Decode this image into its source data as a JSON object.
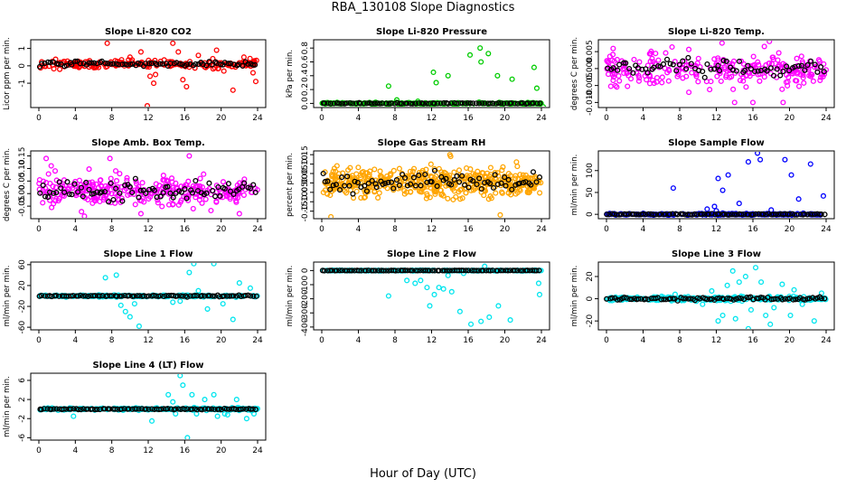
{
  "suptitle": "RBA_130108  Slope Diagnostics",
  "xlabel": "Hour of Day (UTC)",
  "colors": {
    "red": "#ff0000",
    "green": "#00cc00",
    "magenta": "#ff00ff",
    "orange": "#ffa500",
    "blue": "#0000ff",
    "cyan": "#00e5ee",
    "black": "#000000"
  },
  "chart_data": [
    {
      "type": "scatter",
      "title": "Slope Li-820 CO2",
      "ylabel": "Licor ppm per min.",
      "xticks": [
        0,
        4,
        8,
        12,
        16,
        20,
        24
      ],
      "yticks": [
        -1,
        0,
        1
      ],
      "ytick_labels": [
        "-1",
        "0",
        "1"
      ],
      "ylim": [
        -2.4,
        1.5
      ],
      "color": "red",
      "base": {
        "center": 0.1,
        "spread": 0.2,
        "count": 200
      },
      "black": {
        "spread": 0.1,
        "count": 80
      },
      "outliers": [
        [
          7.5,
          1.3
        ],
        [
          10,
          0.5
        ],
        [
          11.2,
          0.8
        ],
        [
          12.2,
          -0.6
        ],
        [
          12.6,
          -1.0
        ],
        [
          12.8,
          -0.5
        ],
        [
          14.7,
          1.3
        ],
        [
          15.3,
          0.8
        ],
        [
          15.8,
          -0.8
        ],
        [
          16.2,
          -1.2
        ],
        [
          17.5,
          0.6
        ],
        [
          19.5,
          0.9
        ],
        [
          20.3,
          -0.3
        ],
        [
          21.3,
          -1.4
        ],
        [
          22.5,
          0.5
        ],
        [
          23.5,
          -0.4
        ],
        [
          11.9,
          -2.3
        ],
        [
          23.8,
          -0.9
        ]
      ]
    },
    {
      "type": "scatter",
      "title": "Slope Li-820 Pressure",
      "ylabel": "kPa per min.",
      "xticks": [
        0,
        4,
        8,
        12,
        16,
        20,
        24
      ],
      "yticks": [
        0,
        0.2,
        0.4,
        0.6,
        0.8
      ],
      "ytick_labels": [
        "0.0",
        "0.2",
        "0.4",
        "0.6",
        "0.8"
      ],
      "ylim": [
        -0.06,
        0.92
      ],
      "color": "green",
      "base": {
        "center": 0.0,
        "spread": 0.01,
        "count": 200
      },
      "black": {
        "spread": 0.005,
        "count": 80
      },
      "outliers": [
        [
          7.3,
          0.25
        ],
        [
          8.2,
          0.05
        ],
        [
          10.5,
          0.03
        ],
        [
          12.2,
          0.45
        ],
        [
          12.5,
          0.3
        ],
        [
          13.8,
          0.4
        ],
        [
          16.2,
          0.7
        ],
        [
          16.4,
          -0.05
        ],
        [
          17.3,
          0.8
        ],
        [
          17.4,
          0.6
        ],
        [
          18.2,
          0.72
        ],
        [
          19.2,
          0.4
        ],
        [
          20.8,
          0.35
        ],
        [
          23.2,
          0.52
        ],
        [
          23.5,
          0.22
        ],
        [
          24.2,
          -0.05
        ]
      ]
    },
    {
      "type": "scatter",
      "title": "Slope Li-820 Temp.",
      "ylabel": "degrees C per min.",
      "xticks": [
        0,
        4,
        8,
        12,
        16,
        20,
        24
      ],
      "yticks": [
        -0.01,
        -0.005,
        0,
        0.005
      ],
      "ytick_labels": [
        "-0.010",
        "-0.005",
        "0.000",
        "0.005"
      ],
      "ylim": [
        -0.0115,
        0.0085
      ],
      "color": "magenta",
      "base": {
        "center": 0.0,
        "spread": 0.004,
        "count": 260
      },
      "black": {
        "spread": 0.002,
        "count": 70
      },
      "outliers": [
        [
          17.8,
          0.008
        ],
        [
          14,
          -0.01
        ],
        [
          16,
          -0.01
        ],
        [
          19.3,
          -0.01
        ],
        [
          9,
          -0.007
        ]
      ]
    },
    {
      "type": "scatter",
      "title": "Slope Amb. Box Temp.",
      "ylabel": "degrees C per min.",
      "xticks": [
        0,
        4,
        8,
        12,
        16,
        20,
        24
      ],
      "yticks": [
        -0.05,
        0,
        0.05,
        0.1,
        0.15
      ],
      "ytick_labels": [
        "-0.05",
        "0.00",
        "0.05",
        "0.10",
        "0.15"
      ],
      "ylim": [
        -0.1,
        0.17
      ],
      "color": "magenta",
      "base": {
        "center": 0.01,
        "spread": 0.05,
        "count": 300
      },
      "black": {
        "spread": 0.04,
        "count": 80
      },
      "outliers": [
        [
          0.8,
          0.14
        ],
        [
          7.8,
          0.14
        ],
        [
          5,
          -0.09
        ],
        [
          11.2,
          -0.08
        ],
        [
          16.5,
          0.15
        ],
        [
          22,
          -0.08
        ]
      ]
    },
    {
      "type": "scatter",
      "title": "Slope Gas Stream RH",
      "ylabel": "percent per min.",
      "xticks": [
        0,
        4,
        8,
        12,
        16,
        20,
        24
      ],
      "yticks": [
        -0.15,
        -0.1,
        -0.05,
        0,
        0.05,
        0.1,
        0.15
      ],
      "ytick_labels": [
        "-0.15",
        "-0.10",
        "-0.05",
        "0.00",
        "0.05",
        "0.10",
        "0.15"
      ],
      "ylim": [
        -0.19,
        0.17
      ],
      "color": "orange",
      "base": {
        "center": 0.0,
        "spread": 0.06,
        "count": 480
      },
      "black": {
        "spread": 0.04,
        "count": 80
      },
      "outliers": [
        [
          1,
          -0.18
        ],
        [
          14,
          0.15
        ],
        [
          19.5,
          -0.17
        ]
      ]
    },
    {
      "type": "scatter",
      "title": "Slope Sample Flow",
      "ylabel": "ml/min per min.",
      "xticks": [
        0,
        4,
        8,
        12,
        16,
        20,
        24
      ],
      "yticks": [
        0,
        50,
        100
      ],
      "ytick_labels": [
        "0",
        "50",
        "100"
      ],
      "ylim": [
        -10,
        145
      ],
      "color": "blue",
      "base": {
        "center": 0,
        "spread": 1.5,
        "count": 220
      },
      "black": {
        "spread": 1,
        "count": 90
      },
      "outliers": [
        [
          7.3,
          60
        ],
        [
          11,
          12
        ],
        [
          11.8,
          18
        ],
        [
          12.2,
          82
        ],
        [
          12.7,
          55
        ],
        [
          13.3,
          90
        ],
        [
          14.5,
          25
        ],
        [
          15.5,
          120
        ],
        [
          16.5,
          140
        ],
        [
          16.8,
          125
        ],
        [
          18,
          10
        ],
        [
          19.5,
          125
        ],
        [
          20.2,
          90
        ],
        [
          21,
          35
        ],
        [
          22.3,
          115
        ],
        [
          23.7,
          42
        ],
        [
          10.7,
          -5
        ],
        [
          12,
          8
        ]
      ]
    },
    {
      "type": "scatter",
      "title": "Slope Line 1 Flow",
      "ylabel": "ml/min per min.",
      "xticks": [
        0,
        4,
        8,
        12,
        16,
        20,
        24
      ],
      "yticks": [
        -60,
        -20,
        20,
        60
      ],
      "ytick_labels": [
        "-60",
        "-20",
        "20",
        "60"
      ],
      "ylim": [
        -65,
        65
      ],
      "color": "cyan",
      "base": {
        "center": 0,
        "spread": 1.5,
        "count": 220
      },
      "black": {
        "spread": 1,
        "count": 90
      },
      "outliers": [
        [
          7.3,
          35
        ],
        [
          9,
          -18
        ],
        [
          9.5,
          -30
        ],
        [
          10,
          -40
        ],
        [
          10.5,
          -15
        ],
        [
          11,
          -58
        ],
        [
          16.5,
          45
        ],
        [
          17,
          62
        ],
        [
          17.5,
          10
        ],
        [
          18.5,
          -25
        ],
        [
          19.2,
          62
        ],
        [
          20.2,
          -15
        ],
        [
          21.3,
          -45
        ],
        [
          22,
          25
        ],
        [
          23.2,
          15
        ],
        [
          14.7,
          -12
        ],
        [
          15.5,
          -10
        ],
        [
          8.5,
          40
        ]
      ]
    },
    {
      "type": "scatter",
      "title": "Slope Line 2 Flow",
      "ylabel": "ml/min per min.",
      "xticks": [
        0,
        4,
        8,
        12,
        16,
        20,
        24
      ],
      "yticks": [
        -400,
        -300,
        -200,
        -100,
        0
      ],
      "ytick_labels": [
        "-400",
        "-300",
        "-200",
        "-100",
        "0"
      ],
      "ylim": [
        -420,
        60
      ],
      "color": "cyan",
      "base": {
        "center": 0,
        "spread": 2,
        "count": 220
      },
      "black": {
        "spread": 1,
        "count": 90
      },
      "outliers": [
        [
          7.3,
          -180
        ],
        [
          9.3,
          -70
        ],
        [
          10.2,
          -90
        ],
        [
          10.8,
          -70
        ],
        [
          11.8,
          -250
        ],
        [
          12.3,
          -170
        ],
        [
          12.8,
          -120
        ],
        [
          13.3,
          -130
        ],
        [
          14.2,
          -150
        ],
        [
          15.1,
          -290
        ],
        [
          15.5,
          -20
        ],
        [
          16.3,
          -380
        ],
        [
          17.4,
          -360
        ],
        [
          18.3,
          -330
        ],
        [
          19.3,
          -250
        ],
        [
          20.6,
          -350
        ],
        [
          23.7,
          -90
        ],
        [
          23.8,
          -170
        ],
        [
          13.8,
          -35
        ],
        [
          11.5,
          -120
        ],
        [
          17.8,
          30
        ]
      ]
    },
    {
      "type": "scatter",
      "title": "Slope Line 3 Flow",
      "ylabel": "ml/min per min.",
      "xticks": [
        0,
        4,
        8,
        12,
        16,
        20,
        24
      ],
      "yticks": [
        -20,
        0,
        20
      ],
      "ytick_labels": [
        "-20",
        "0",
        "20"
      ],
      "ylim": [
        -28,
        33
      ],
      "color": "cyan",
      "base": {
        "center": 0,
        "spread": 1.5,
        "count": 240
      },
      "black": {
        "spread": 1,
        "count": 90
      },
      "outliers": [
        [
          7.5,
          4
        ],
        [
          10.5,
          -5
        ],
        [
          11.5,
          7
        ],
        [
          12.2,
          -20
        ],
        [
          12.7,
          -15
        ],
        [
          13.2,
          12
        ],
        [
          13.8,
          25
        ],
        [
          14.1,
          -18
        ],
        [
          14.5,
          15
        ],
        [
          15.2,
          20
        ],
        [
          15.8,
          -10
        ],
        [
          16.3,
          28
        ],
        [
          16.9,
          15
        ],
        [
          17.4,
          -15
        ],
        [
          17.9,
          -23
        ],
        [
          18.3,
          -8
        ],
        [
          19.2,
          13
        ],
        [
          20.1,
          -15
        ],
        [
          20.5,
          8
        ],
        [
          21.4,
          -5
        ],
        [
          22.7,
          -20
        ],
        [
          23.5,
          5
        ],
        [
          15.5,
          -27
        ]
      ]
    },
    {
      "type": "scatter",
      "title": "Slope Line 4 (LT) Flow",
      "ylabel": "ml/min per min.",
      "xticks": [
        0,
        4,
        8,
        12,
        16,
        20,
        24
      ],
      "yticks": [
        -6,
        -2,
        2,
        6
      ],
      "ytick_labels": [
        "-6",
        "-2",
        "2",
        "6"
      ],
      "ylim": [
        -6.5,
        7.5
      ],
      "color": "cyan",
      "base": {
        "center": 0,
        "spread": 0.2,
        "count": 220
      },
      "black": {
        "spread": 0.1,
        "count": 90
      },
      "outliers": [
        [
          3.8,
          -1.5
        ],
        [
          12.4,
          -2.5
        ],
        [
          14.2,
          3
        ],
        [
          14.7,
          1.5
        ],
        [
          15,
          -1
        ],
        [
          15.5,
          7
        ],
        [
          15.8,
          5
        ],
        [
          16.3,
          -6
        ],
        [
          16.8,
          3
        ],
        [
          17.3,
          -1
        ],
        [
          18.2,
          2
        ],
        [
          19.2,
          3
        ],
        [
          19.6,
          -1.5
        ],
        [
          20.4,
          -1
        ],
        [
          20.7,
          -1.2
        ],
        [
          21.7,
          2
        ],
        [
          22.8,
          -2
        ],
        [
          23.6,
          -1
        ]
      ]
    }
  ]
}
